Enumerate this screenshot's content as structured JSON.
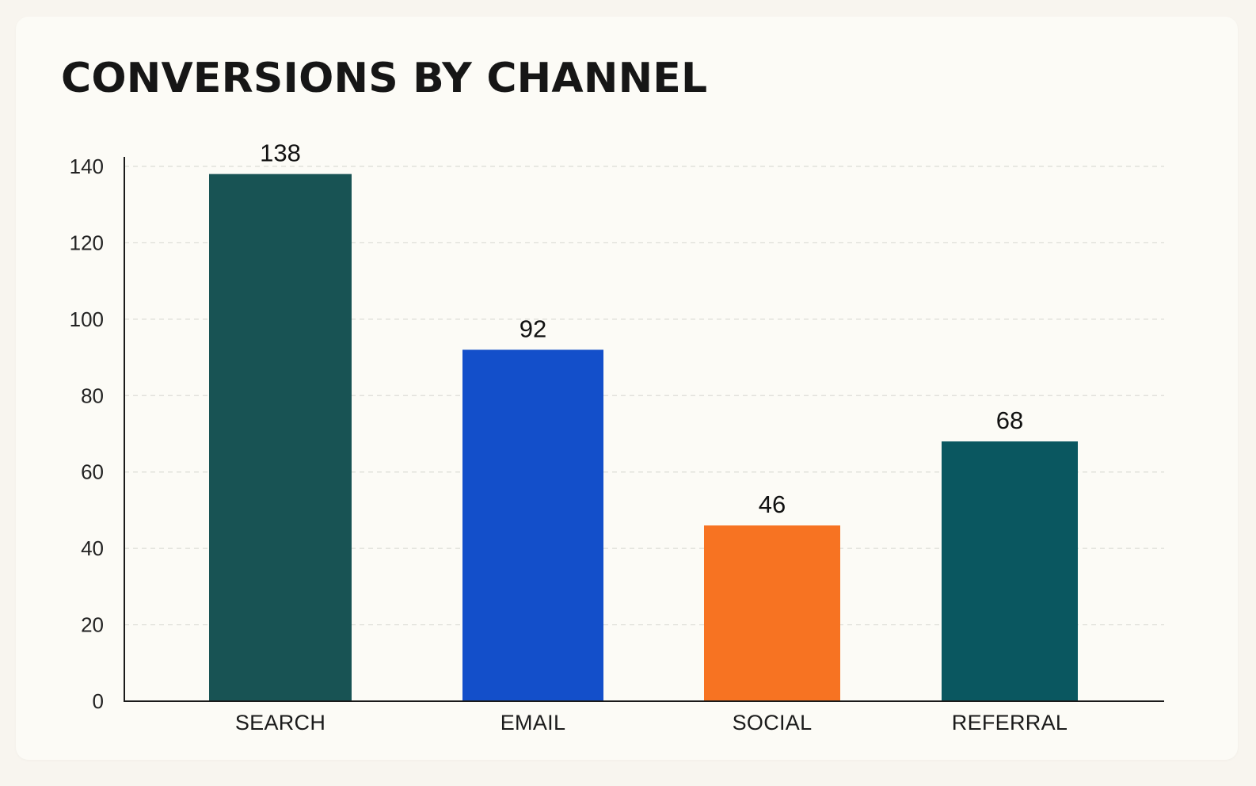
{
  "chart_data": {
    "type": "bar",
    "title": "CONVERSIONS BY CHANNEL",
    "categories": [
      "SEARCH",
      "EMAIL",
      "SOCIAL",
      "REFERRAL"
    ],
    "values": [
      138,
      92,
      46,
      68
    ],
    "colors": [
      "#185354",
      "#134fca",
      "#f77322",
      "#0a5760"
    ],
    "yticks": [
      0,
      20,
      40,
      60,
      80,
      100,
      120,
      140
    ],
    "ylim": [
      0,
      140
    ],
    "grid": true,
    "xlabel": "",
    "ylabel": ""
  }
}
